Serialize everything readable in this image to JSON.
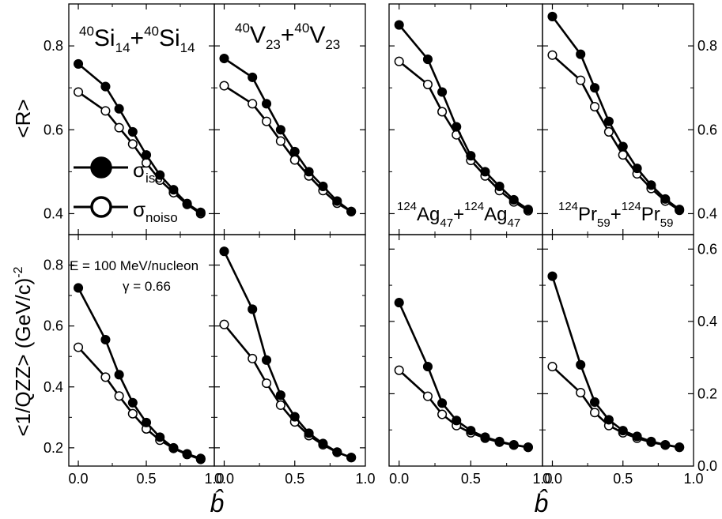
{
  "chart_data": {
    "type": "line",
    "x": [
      0.0,
      0.2,
      0.3,
      0.4,
      0.5,
      0.6,
      0.7,
      0.8,
      0.9
    ],
    "xlim": [
      -0.07,
      1.0
    ],
    "xticks": [
      "0.0",
      "0.5",
      "1.0"
    ],
    "xlabel": "b̂",
    "legend": [
      {
        "marker": "filled",
        "symbol": "σ",
        "sub": "iso"
      },
      {
        "marker": "open",
        "symbol": "σ",
        "sub": "noiso"
      }
    ],
    "annotations": {
      "energy": "E = 100 MeV/nucleon",
      "gamma": "γ = 0.66"
    },
    "rows": [
      {
        "ylabel": "<R>",
        "yunit_sup": "",
        "yticks_left": [
          "0.4",
          "0.6",
          "0.8"
        ],
        "yticks_right": [
          "0.4",
          "0.6",
          "0.8"
        ],
        "ylim_left": [
          0.35,
          0.9
        ],
        "ylim_right": [
          0.35,
          0.9
        ]
      },
      {
        "ylabel": "<1/QZZ> (GeV/c)",
        "yunit_sup": "-2",
        "yticks_left": [
          "0.2",
          "0.4",
          "0.6",
          "0.8"
        ],
        "yticks_right": [
          "0.0",
          "0.2",
          "0.4",
          "0.6"
        ],
        "ylim_left": [
          0.14,
          0.9
        ],
        "ylim_right": [
          0.0,
          0.64
        ]
      }
    ],
    "systems": [
      {
        "A1": "40",
        "el1": "Si",
        "Z1": "14",
        "A2": "40",
        "el2": "Si",
        "Z2": "14",
        "R_iso": [
          0.757,
          0.703,
          0.65,
          0.595,
          0.54,
          0.492,
          0.457,
          0.424,
          0.403
        ],
        "R_noiso": [
          0.69,
          0.645,
          0.605,
          0.566,
          0.521,
          0.48,
          0.45,
          0.422,
          0.4
        ],
        "Q_iso": [
          0.725,
          0.555,
          0.44,
          0.348,
          0.283,
          0.235,
          0.2,
          0.18,
          0.165
        ],
        "Q_noiso": [
          0.53,
          0.432,
          0.37,
          0.312,
          0.262,
          0.225,
          0.198,
          0.178,
          0.162
        ]
      },
      {
        "A1": "40",
        "el1": "V",
        "Z1": "23",
        "A2": "40",
        "el2": "V",
        "Z2": "23",
        "R_iso": [
          0.77,
          0.725,
          0.662,
          0.6,
          0.548,
          0.5,
          0.465,
          0.43,
          0.405
        ],
        "R_noiso": [
          0.705,
          0.662,
          0.62,
          0.573,
          0.528,
          0.49,
          0.455,
          0.425,
          0.405
        ],
        "Q_iso": [
          0.845,
          0.655,
          0.488,
          0.373,
          0.302,
          0.248,
          0.214,
          0.186,
          0.168
        ],
        "Q_noiso": [
          0.605,
          0.493,
          0.412,
          0.34,
          0.285,
          0.24,
          0.21,
          0.185,
          0.168
        ]
      },
      {
        "A1": "124",
        "el1": "Ag",
        "Z1": "47",
        "A2": "124",
        "el2": "Ag",
        "Z2": "47",
        "R_iso": [
          0.85,
          0.768,
          0.69,
          0.607,
          0.538,
          0.5,
          0.465,
          0.433,
          0.41
        ],
        "R_noiso": [
          0.763,
          0.708,
          0.643,
          0.588,
          0.527,
          0.49,
          0.455,
          0.428,
          0.407
        ],
        "Q_iso": [
          0.452,
          0.275,
          0.174,
          0.126,
          0.098,
          0.08,
          0.068,
          0.059,
          0.052
        ],
        "Q_noiso": [
          0.265,
          0.193,
          0.143,
          0.112,
          0.092,
          0.077,
          0.066,
          0.058,
          0.052
        ]
      },
      {
        "A1": "124",
        "el1": "Pr",
        "Z1": "59",
        "A2": "124",
        "el2": "Pr",
        "Z2": "59",
        "R_iso": [
          0.87,
          0.78,
          0.7,
          0.62,
          0.56,
          0.508,
          0.468,
          0.435,
          0.41
        ],
        "R_noiso": [
          0.778,
          0.718,
          0.655,
          0.595,
          0.54,
          0.495,
          0.46,
          0.43,
          0.408
        ],
        "Q_iso": [
          0.525,
          0.28,
          0.177,
          0.128,
          0.098,
          0.082,
          0.068,
          0.059,
          0.052
        ],
        "Q_noiso": [
          0.275,
          0.203,
          0.148,
          0.112,
          0.092,
          0.077,
          0.066,
          0.058,
          0.052
        ]
      }
    ]
  }
}
